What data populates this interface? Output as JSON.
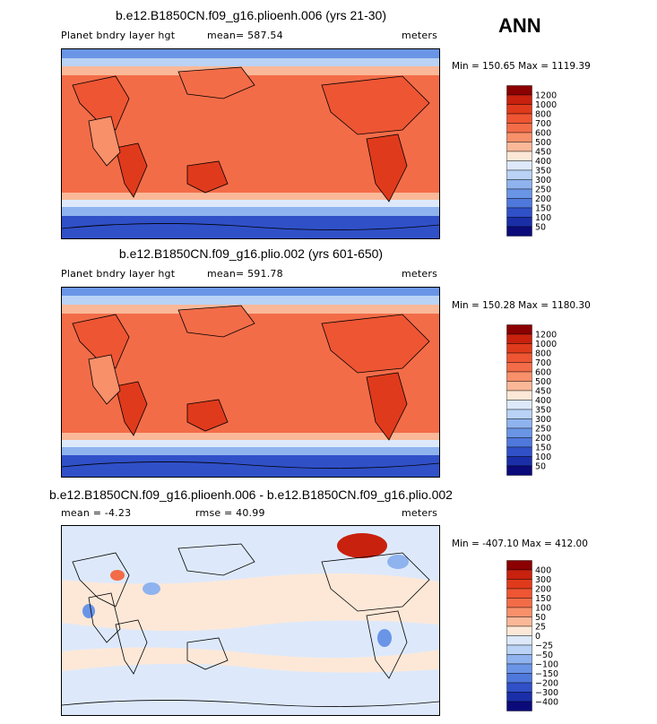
{
  "season": "ANN",
  "panels": [
    {
      "title": "b.e12.B1850CN.f09_g16.plioenh.006 (yrs 21-30)",
      "left_label": "Planet bndry layer hgt",
      "center_label": "mean= 587.54",
      "right_label": "meters",
      "minmax": "Min = 150.65 Max = 1119.39"
    },
    {
      "title": "b.e12.B1850CN.f09_g16.plio.002 (yrs 601-650)",
      "left_label": "Planet bndry layer hgt",
      "center_label": "mean= 591.78",
      "right_label": "meters",
      "minmax": "Min = 150.28 Max = 1180.30"
    },
    {
      "title": "b.e12.B1850CN.f09_g16.plioenh.006 - b.e12.B1850CN.f09_g16.plio.002",
      "left_label": "mean =  -4.23",
      "center_label": "rmse =  40.99",
      "right_label": "meters",
      "minmax": "Min = -407.10 Max = 412.00"
    }
  ],
  "colorbars": {
    "absolute": {
      "levels": [
        "1200",
        "1000",
        "800",
        "700",
        "600",
        "500",
        "450",
        "400",
        "350",
        "300",
        "250",
        "200",
        "150",
        "100",
        "50"
      ],
      "colors": [
        "#8b0000",
        "#c8210e",
        "#e03a1c",
        "#ee5533",
        "#f36c48",
        "#f8906a",
        "#fab898",
        "#fde8d8",
        "#dde9fb",
        "#b9d2f5",
        "#8fb3ee",
        "#6a95e6",
        "#4f78dc",
        "#3050c8",
        "#1a2ea8",
        "#0b0a7a"
      ]
    },
    "difference": {
      "levels": [
        "400",
        "300",
        "200",
        "150",
        "100",
        "50",
        "25",
        "0",
        "−25",
        "−50",
        "−100",
        "−150",
        "−200",
        "−300",
        "−400"
      ],
      "colors": [
        "#8b0000",
        "#c8210e",
        "#e03a1c",
        "#ee5533",
        "#f36c48",
        "#f8906a",
        "#fab898",
        "#fde8d8",
        "#dde9fb",
        "#b9d2f5",
        "#8fb3ee",
        "#6a95e6",
        "#4f78dc",
        "#3050c8",
        "#1a2ea8",
        "#0b0a7a"
      ]
    }
  },
  "chart_data": [
    {
      "type": "heatmap",
      "title": "b.e12.B1850CN.f09_g16.plioenh.006 (yrs 21-30)",
      "variable": "Planet bndry layer hgt",
      "units": "meters",
      "mean": 587.54,
      "min": 150.65,
      "max": 1119.39,
      "contour_levels": [
        50,
        100,
        150,
        200,
        250,
        300,
        350,
        400,
        450,
        500,
        600,
        700,
        800,
        1000,
        1200
      ]
    },
    {
      "type": "heatmap",
      "title": "b.e12.B1850CN.f09_g16.plio.002 (yrs 601-650)",
      "variable": "Planet bndry layer hgt",
      "units": "meters",
      "mean": 591.78,
      "min": 150.28,
      "max": 1180.3,
      "contour_levels": [
        50,
        100,
        150,
        200,
        250,
        300,
        350,
        400,
        450,
        500,
        600,
        700,
        800,
        1000,
        1200
      ]
    },
    {
      "type": "heatmap",
      "title": "b.e12.B1850CN.f09_g16.plioenh.006 - b.e12.B1850CN.f09_g16.plio.002",
      "units": "meters",
      "mean": -4.23,
      "rmse": 40.99,
      "min": -407.1,
      "max": 412.0,
      "contour_levels": [
        -400,
        -300,
        -200,
        -150,
        -100,
        -50,
        -25,
        0,
        25,
        50,
        100,
        150,
        200,
        300,
        400
      ]
    }
  ]
}
